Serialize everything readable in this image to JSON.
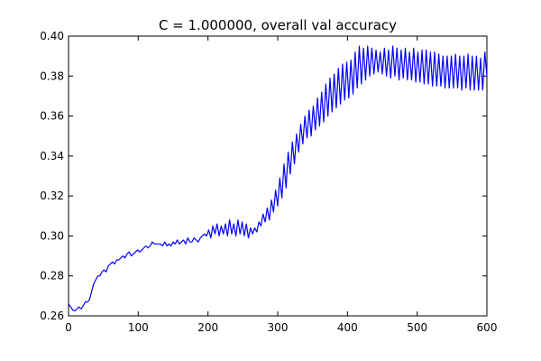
{
  "chart_data": {
    "type": "line",
    "title": "C = 1.000000, overall val accuracy",
    "xlabel": "",
    "ylabel": "",
    "xlim": [
      0,
      600
    ],
    "ylim": [
      0.26,
      0.4
    ],
    "x_ticks": [
      0,
      100,
      200,
      300,
      400,
      500,
      600
    ],
    "x_tick_labels": [
      "0",
      "100",
      "200",
      "300",
      "400",
      "500",
      "600"
    ],
    "y_ticks": [
      0.26,
      0.28,
      0.3,
      0.32,
      0.34,
      0.36,
      0.38,
      0.4
    ],
    "y_tick_labels": [
      "0.26",
      "0.28",
      "0.30",
      "0.32",
      "0.34",
      "0.36",
      "0.38",
      "0.40"
    ],
    "grid": false,
    "legend": "none",
    "series": [
      {
        "color": "#0000ff",
        "x": [
          0,
          3,
          6,
          9,
          12,
          15,
          18,
          21,
          24,
          27,
          30,
          33,
          36,
          39,
          42,
          45,
          48,
          51,
          54,
          57,
          60,
          63,
          66,
          69,
          72,
          75,
          78,
          81,
          84,
          87,
          90,
          93,
          96,
          99,
          102,
          105,
          108,
          111,
          114,
          117,
          120,
          123,
          126,
          129,
          132,
          135,
          138,
          141,
          144,
          147,
          150,
          153,
          156,
          159,
          162,
          165,
          168,
          171,
          174,
          177,
          180,
          183,
          186,
          189,
          192,
          195,
          198,
          201,
          204,
          207,
          210,
          213,
          216,
          219,
          222,
          225,
          228,
          231,
          234,
          237,
          240,
          243,
          246,
          249,
          252,
          255,
          258,
          261,
          264,
          267,
          270,
          273,
          276,
          279,
          282,
          285,
          288,
          291,
          294,
          297,
          300,
          303,
          306,
          309,
          312,
          315,
          318,
          321,
          324,
          327,
          330,
          333,
          336,
          339,
          342,
          345,
          348,
          351,
          354,
          357,
          360,
          363,
          366,
          369,
          372,
          375,
          378,
          381,
          384,
          387,
          390,
          393,
          396,
          399,
          402,
          405,
          408,
          411,
          414,
          417,
          420,
          423,
          426,
          429,
          432,
          435,
          438,
          441,
          444,
          447,
          450,
          453,
          456,
          459,
          462,
          465,
          468,
          471,
          474,
          477,
          480,
          483,
          486,
          489,
          492,
          495,
          498,
          501,
          504,
          507,
          510,
          513,
          516,
          519,
          522,
          525,
          528,
          531,
          534,
          537,
          540,
          543,
          546,
          549,
          552,
          555,
          558,
          561,
          564,
          567,
          570,
          573,
          576,
          579,
          582,
          585,
          588,
          591,
          594,
          597,
          600
        ],
        "y": [
          0.266,
          0.2645,
          0.263,
          0.2625,
          0.2635,
          0.2645,
          0.2635,
          0.265,
          0.267,
          0.267,
          0.268,
          0.272,
          0.276,
          0.278,
          0.28,
          0.28,
          0.282,
          0.283,
          0.282,
          0.285,
          0.286,
          0.287,
          0.286,
          0.288,
          0.288,
          0.289,
          0.29,
          0.289,
          0.291,
          0.292,
          0.29,
          0.291,
          0.292,
          0.293,
          0.292,
          0.293,
          0.294,
          0.295,
          0.294,
          0.295,
          0.297,
          0.296,
          0.296,
          0.296,
          0.296,
          0.295,
          0.297,
          0.295,
          0.296,
          0.295,
          0.297,
          0.296,
          0.298,
          0.296,
          0.297,
          0.298,
          0.296,
          0.299,
          0.297,
          0.297,
          0.299,
          0.298,
          0.297,
          0.299,
          0.3,
          0.301,
          0.3,
          0.303,
          0.299,
          0.305,
          0.301,
          0.306,
          0.3,
          0.305,
          0.301,
          0.306,
          0.3,
          0.308,
          0.301,
          0.306,
          0.3,
          0.308,
          0.301,
          0.307,
          0.3,
          0.306,
          0.299,
          0.304,
          0.301,
          0.304,
          0.302,
          0.307,
          0.305,
          0.311,
          0.307,
          0.314,
          0.308,
          0.318,
          0.312,
          0.323,
          0.315,
          0.329,
          0.319,
          0.336,
          0.324,
          0.342,
          0.331,
          0.347,
          0.336,
          0.351,
          0.342,
          0.356,
          0.346,
          0.36,
          0.349,
          0.363,
          0.35,
          0.365,
          0.353,
          0.369,
          0.355,
          0.372,
          0.357,
          0.376,
          0.36,
          0.379,
          0.362,
          0.381,
          0.364,
          0.384,
          0.366,
          0.386,
          0.368,
          0.387,
          0.369,
          0.388,
          0.371,
          0.392,
          0.374,
          0.395,
          0.376,
          0.394,
          0.378,
          0.395,
          0.38,
          0.394,
          0.381,
          0.393,
          0.382,
          0.392,
          0.381,
          0.394,
          0.38,
          0.393,
          0.379,
          0.395,
          0.38,
          0.394,
          0.378,
          0.393,
          0.379,
          0.394,
          0.378,
          0.392,
          0.378,
          0.394,
          0.377,
          0.392,
          0.377,
          0.393,
          0.376,
          0.393,
          0.376,
          0.392,
          0.375,
          0.392,
          0.375,
          0.391,
          0.375,
          0.39,
          0.374,
          0.39,
          0.374,
          0.39,
          0.374,
          0.391,
          0.374,
          0.39,
          0.373,
          0.39,
          0.374,
          0.391,
          0.373,
          0.39,
          0.373,
          0.39,
          0.373,
          0.389,
          0.373,
          0.392,
          0.38
        ]
      }
    ]
  }
}
